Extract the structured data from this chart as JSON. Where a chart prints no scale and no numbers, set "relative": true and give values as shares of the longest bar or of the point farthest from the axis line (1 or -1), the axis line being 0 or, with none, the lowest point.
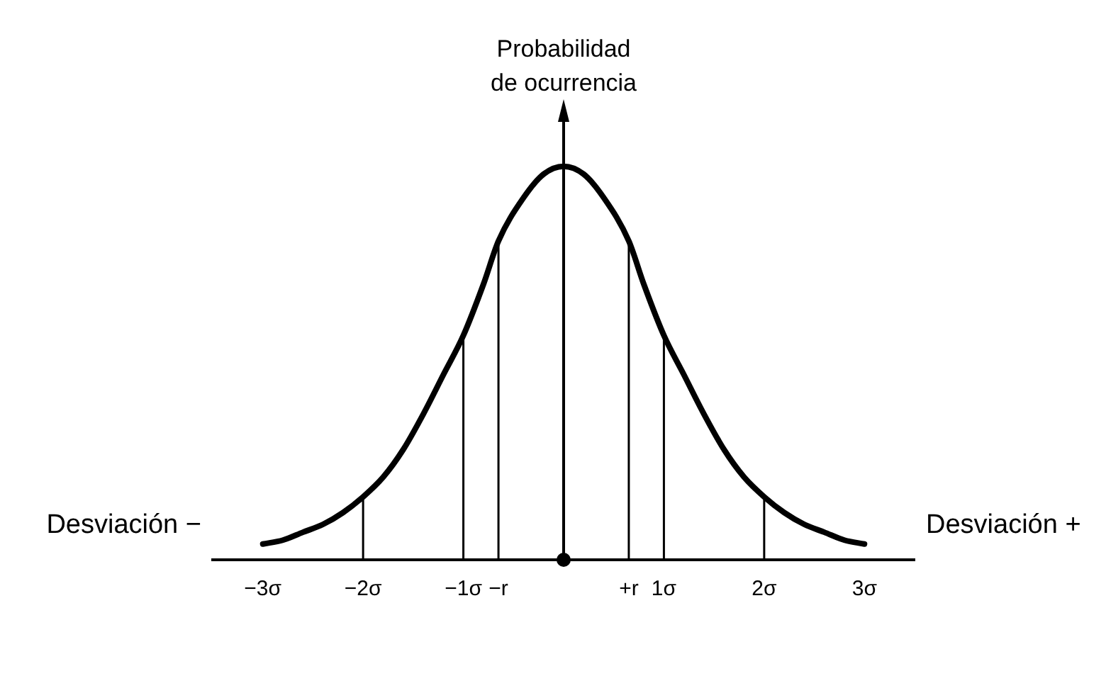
{
  "chart_data": {
    "type": "line",
    "relative": true,
    "ylabel": "Probabilidad\nde ocurrencia",
    "annotations": [
      "Desviación −",
      "Desviación +"
    ],
    "x": [
      -3,
      -2.8,
      -2.6,
      -2.4,
      -2.2,
      -2,
      -1.8,
      -1.6,
      -1.4,
      -1.2,
      -1,
      -0.8,
      -0.65,
      -0.4,
      -0.2,
      0,
      0.2,
      0.4,
      0.65,
      0.8,
      1,
      1.2,
      1.4,
      1.6,
      1.8,
      2,
      2.2,
      2.4,
      2.6,
      2.8,
      3
    ],
    "series": [
      {
        "color": "#000000",
        "values": [
          0.04,
          0.05,
          0.07,
          0.09,
          0.12,
          0.16,
          0.21,
          0.28,
          0.37,
          0.47,
          0.57,
          0.7,
          0.81,
          0.92,
          0.98,
          1,
          0.98,
          0.92,
          0.81,
          0.7,
          0.57,
          0.47,
          0.37,
          0.28,
          0.21,
          0.16,
          0.12,
          0.09,
          0.07,
          0.05,
          0.04
        ]
      }
    ],
    "xlim": [
      -3.5,
      3.5
    ],
    "xticks": [
      {
        "value": -3,
        "label": "−3σ"
      },
      {
        "value": -2,
        "label": "−2σ"
      },
      {
        "value": -1,
        "label": "−1σ"
      },
      {
        "value": -0.65,
        "label": "−r"
      },
      {
        "value": 0.65,
        "label": "+r"
      },
      {
        "value": 1,
        "label": "1σ"
      },
      {
        "value": 2,
        "label": "2σ"
      },
      {
        "value": 3,
        "label": "3σ"
      }
    ],
    "ref_lines": [
      {
        "axis": "x",
        "value": -2
      },
      {
        "axis": "x",
        "value": -1
      },
      {
        "axis": "x",
        "value": -0.65
      },
      {
        "axis": "x",
        "value": 0.65
      },
      {
        "axis": "x",
        "value": 1
      },
      {
        "axis": "x",
        "value": 2
      }
    ],
    "legend": false,
    "marker": "none",
    "line_style": "solid"
  }
}
